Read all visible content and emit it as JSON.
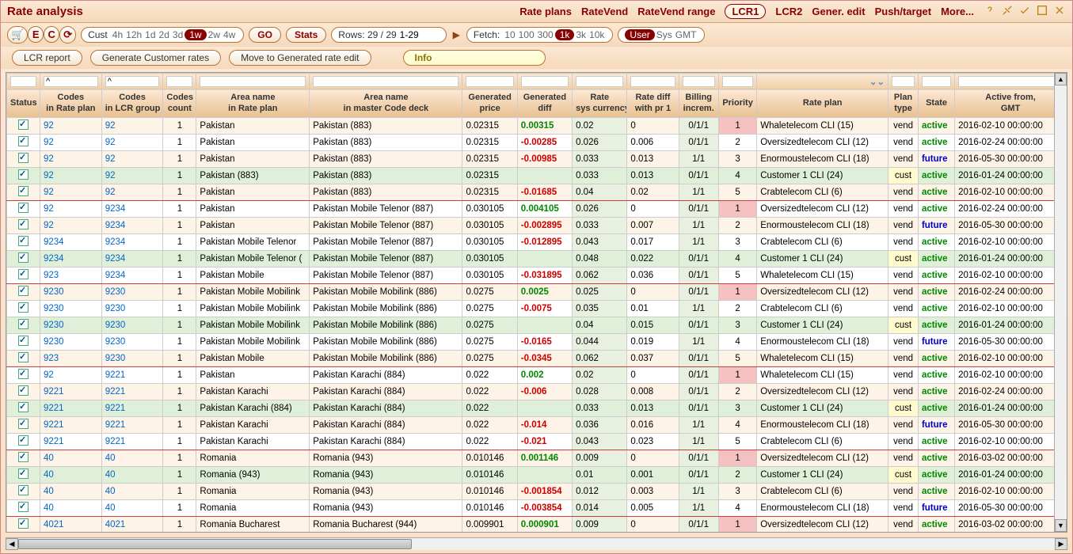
{
  "title": "Rate analysis",
  "nav": [
    "Rate plans",
    "RateVend",
    "RateVend range",
    "LCR1",
    "LCR2",
    "Gener. edit",
    "Push/target",
    "More..."
  ],
  "nav_active_index": 3,
  "toolbar": {
    "icon_buttons": [
      "🛒",
      "E",
      "C",
      "⟳"
    ],
    "cust_label": "Cust",
    "time_opts": [
      "4h",
      "12h",
      "1d",
      "2d",
      "3d",
      "1w",
      "2w",
      "4w"
    ],
    "time_active": 5,
    "go_label": "GO",
    "stats_label": "Stats",
    "rows_label": "Rows: 29 / 29",
    "rows_input": "1-29",
    "fetch_label": "Fetch:",
    "fetch_opts": [
      "10",
      "100",
      "300",
      "1k",
      "3k",
      "10k"
    ],
    "fetch_active": 3,
    "user_opts": [
      "User",
      "Sys",
      "GMT"
    ],
    "user_active": 0
  },
  "actions": {
    "lcr_report": "LCR report",
    "gen_customer": "Generate Customer rates",
    "move_to": "Move to Generated rate edit",
    "info": "Info"
  },
  "columns": [
    "Status",
    "Codes\nin Rate plan",
    "Codes\nin LCR group",
    "Codes\ncount",
    "Area name\nin Rate plan",
    "Area name\nin master Code deck",
    "Generated\nprice",
    "Generated\ndiff",
    "Rate\nsys currency",
    "Rate diff\nwith pr 1",
    "Billing\nincrem.",
    "Priority",
    "Rate plan",
    "Plan\ntype",
    "State",
    "Active from,\nGMT"
  ],
  "filters": [
    "",
    "^",
    "^",
    "",
    "",
    "",
    "",
    "",
    "",
    "",
    "",
    "",
    "",
    "",
    "",
    ""
  ],
  "rows": [
    {
      "crp": "92",
      "clcr": "92",
      "cnt": "1",
      "an_rp": "Pakistan",
      "an_mcd": "Pakistan (883)",
      "genp": "0.02315",
      "gendiff": "0.00315",
      "diff_sign": "pos",
      "rsys": "0.02",
      "rdiff": "0",
      "bill": "0/1/1",
      "prio": "1",
      "plan": "Whaletelecom CLI (15)",
      "ptype": "vend",
      "state": "active",
      "active": "2016-02-10 00:00:00",
      "green": false,
      "sep": false
    },
    {
      "crp": "92",
      "clcr": "92",
      "cnt": "1",
      "an_rp": "Pakistan",
      "an_mcd": "Pakistan (883)",
      "genp": "0.02315",
      "gendiff": "-0.00285",
      "diff_sign": "neg",
      "rsys": "0.026",
      "rdiff": "0.006",
      "bill": "0/1/1",
      "prio": "2",
      "plan": "Oversizedtelecom CLI (12)",
      "ptype": "vend",
      "state": "active",
      "active": "2016-02-24 00:00:00",
      "green": false,
      "sep": false
    },
    {
      "crp": "92",
      "clcr": "92",
      "cnt": "1",
      "an_rp": "Pakistan",
      "an_mcd": "Pakistan (883)",
      "genp": "0.02315",
      "gendiff": "-0.00985",
      "diff_sign": "neg",
      "rsys": "0.033",
      "rdiff": "0.013",
      "bill": "1/1",
      "prio": "3",
      "plan": "Enormoustelecom CLI (18)",
      "ptype": "vend",
      "state": "future",
      "active": "2016-05-30 00:00:00",
      "green": false,
      "sep": false
    },
    {
      "crp": "92",
      "clcr": "92",
      "cnt": "1",
      "an_rp": "Pakistan (883)",
      "an_mcd": "Pakistan (883)",
      "genp": "0.02315",
      "gendiff": "",
      "diff_sign": "",
      "rsys": "0.033",
      "rdiff": "0.013",
      "bill": "0/1/1",
      "prio": "4",
      "plan": "Customer 1 CLI (24)",
      "ptype": "cust",
      "state": "active",
      "active": "2016-01-24 00:00:00",
      "green": true,
      "sep": false
    },
    {
      "crp": "92",
      "clcr": "92",
      "cnt": "1",
      "an_rp": "Pakistan",
      "an_mcd": "Pakistan (883)",
      "genp": "0.02315",
      "gendiff": "-0.01685",
      "diff_sign": "neg",
      "rsys": "0.04",
      "rdiff": "0.02",
      "bill": "1/1",
      "prio": "5",
      "plan": "Crabtelecom CLI (6)",
      "ptype": "vend",
      "state": "active",
      "active": "2016-02-10 00:00:00",
      "green": false,
      "sep": true
    },
    {
      "crp": "92",
      "clcr": "9234",
      "cnt": "1",
      "an_rp": "Pakistan",
      "an_mcd": "Pakistan Mobile Telenor (887)",
      "genp": "0.030105",
      "gendiff": "0.004105",
      "diff_sign": "pos",
      "rsys": "0.026",
      "rdiff": "0",
      "bill": "0/1/1",
      "prio": "1",
      "plan": "Oversizedtelecom CLI (12)",
      "ptype": "vend",
      "state": "active",
      "active": "2016-02-24 00:00:00",
      "green": false,
      "sep": false
    },
    {
      "crp": "92",
      "clcr": "9234",
      "cnt": "1",
      "an_rp": "Pakistan",
      "an_mcd": "Pakistan Mobile Telenor (887)",
      "genp": "0.030105",
      "gendiff": "-0.002895",
      "diff_sign": "neg",
      "rsys": "0.033",
      "rdiff": "0.007",
      "bill": "1/1",
      "prio": "2",
      "plan": "Enormoustelecom CLI (18)",
      "ptype": "vend",
      "state": "future",
      "active": "2016-05-30 00:00:00",
      "green": false,
      "sep": false
    },
    {
      "crp": "9234",
      "clcr": "9234",
      "cnt": "1",
      "an_rp": "Pakistan Mobile Telenor",
      "an_mcd": "Pakistan Mobile Telenor (887)",
      "genp": "0.030105",
      "gendiff": "-0.012895",
      "diff_sign": "neg",
      "rsys": "0.043",
      "rdiff": "0.017",
      "bill": "1/1",
      "prio": "3",
      "plan": "Crabtelecom CLI (6)",
      "ptype": "vend",
      "state": "active",
      "active": "2016-02-10 00:00:00",
      "green": false,
      "sep": false
    },
    {
      "crp": "9234",
      "clcr": "9234",
      "cnt": "1",
      "an_rp": "Pakistan Mobile Telenor (",
      "an_mcd": "Pakistan Mobile Telenor (887)",
      "genp": "0.030105",
      "gendiff": "",
      "diff_sign": "",
      "rsys": "0.048",
      "rdiff": "0.022",
      "bill": "0/1/1",
      "prio": "4",
      "plan": "Customer 1 CLI (24)",
      "ptype": "cust",
      "state": "active",
      "active": "2016-01-24 00:00:00",
      "green": true,
      "sep": false
    },
    {
      "crp": "923",
      "clcr": "9234",
      "cnt": "1",
      "an_rp": "Pakistan Mobile",
      "an_mcd": "Pakistan Mobile Telenor (887)",
      "genp": "0.030105",
      "gendiff": "-0.031895",
      "diff_sign": "neg",
      "rsys": "0.062",
      "rdiff": "0.036",
      "bill": "0/1/1",
      "prio": "5",
      "plan": "Whaletelecom CLI (15)",
      "ptype": "vend",
      "state": "active",
      "active": "2016-02-10 00:00:00",
      "green": false,
      "sep": true
    },
    {
      "crp": "9230",
      "clcr": "9230",
      "cnt": "1",
      "an_rp": "Pakistan Mobile Mobilink",
      "an_mcd": "Pakistan Mobile Mobilink (886)",
      "genp": "0.0275",
      "gendiff": "0.0025",
      "diff_sign": "pos",
      "rsys": "0.025",
      "rdiff": "0",
      "bill": "0/1/1",
      "prio": "1",
      "plan": "Oversizedtelecom CLI (12)",
      "ptype": "vend",
      "state": "active",
      "active": "2016-02-24 00:00:00",
      "green": false,
      "sep": false
    },
    {
      "crp": "9230",
      "clcr": "9230",
      "cnt": "1",
      "an_rp": "Pakistan Mobile Mobilink",
      "an_mcd": "Pakistan Mobile Mobilink (886)",
      "genp": "0.0275",
      "gendiff": "-0.0075",
      "diff_sign": "neg",
      "rsys": "0.035",
      "rdiff": "0.01",
      "bill": "1/1",
      "prio": "2",
      "plan": "Crabtelecom CLI (6)",
      "ptype": "vend",
      "state": "active",
      "active": "2016-02-10 00:00:00",
      "green": false,
      "sep": false
    },
    {
      "crp": "9230",
      "clcr": "9230",
      "cnt": "1",
      "an_rp": "Pakistan Mobile Mobilink",
      "an_mcd": "Pakistan Mobile Mobilink (886)",
      "genp": "0.0275",
      "gendiff": "",
      "diff_sign": "",
      "rsys": "0.04",
      "rdiff": "0.015",
      "bill": "0/1/1",
      "prio": "3",
      "plan": "Customer 1 CLI (24)",
      "ptype": "cust",
      "state": "active",
      "active": "2016-01-24 00:00:00",
      "green": true,
      "sep": false
    },
    {
      "crp": "9230",
      "clcr": "9230",
      "cnt": "1",
      "an_rp": "Pakistan Mobile Mobilink",
      "an_mcd": "Pakistan Mobile Mobilink (886)",
      "genp": "0.0275",
      "gendiff": "-0.0165",
      "diff_sign": "neg",
      "rsys": "0.044",
      "rdiff": "0.019",
      "bill": "1/1",
      "prio": "4",
      "plan": "Enormoustelecom CLI (18)",
      "ptype": "vend",
      "state": "future",
      "active": "2016-05-30 00:00:00",
      "green": false,
      "sep": false
    },
    {
      "crp": "923",
      "clcr": "9230",
      "cnt": "1",
      "an_rp": "Pakistan Mobile",
      "an_mcd": "Pakistan Mobile Mobilink (886)",
      "genp": "0.0275",
      "gendiff": "-0.0345",
      "diff_sign": "neg",
      "rsys": "0.062",
      "rdiff": "0.037",
      "bill": "0/1/1",
      "prio": "5",
      "plan": "Whaletelecom CLI (15)",
      "ptype": "vend",
      "state": "active",
      "active": "2016-02-10 00:00:00",
      "green": false,
      "sep": true
    },
    {
      "crp": "92",
      "clcr": "9221",
      "cnt": "1",
      "an_rp": "Pakistan",
      "an_mcd": "Pakistan Karachi (884)",
      "genp": "0.022",
      "gendiff": "0.002",
      "diff_sign": "pos",
      "rsys": "0.02",
      "rdiff": "0",
      "bill": "0/1/1",
      "prio": "1",
      "plan": "Whaletelecom CLI (15)",
      "ptype": "vend",
      "state": "active",
      "active": "2016-02-10 00:00:00",
      "green": false,
      "sep": false
    },
    {
      "crp": "9221",
      "clcr": "9221",
      "cnt": "1",
      "an_rp": "Pakistan Karachi",
      "an_mcd": "Pakistan Karachi (884)",
      "genp": "0.022",
      "gendiff": "-0.006",
      "diff_sign": "neg",
      "rsys": "0.028",
      "rdiff": "0.008",
      "bill": "0/1/1",
      "prio": "2",
      "plan": "Oversizedtelecom CLI (12)",
      "ptype": "vend",
      "state": "active",
      "active": "2016-02-24 00:00:00",
      "green": false,
      "sep": false
    },
    {
      "crp": "9221",
      "clcr": "9221",
      "cnt": "1",
      "an_rp": "Pakistan Karachi (884)",
      "an_mcd": "Pakistan Karachi (884)",
      "genp": "0.022",
      "gendiff": "",
      "diff_sign": "",
      "rsys": "0.033",
      "rdiff": "0.013",
      "bill": "0/1/1",
      "prio": "3",
      "plan": "Customer 1 CLI (24)",
      "ptype": "cust",
      "state": "active",
      "active": "2016-01-24 00:00:00",
      "green": true,
      "sep": false
    },
    {
      "crp": "9221",
      "clcr": "9221",
      "cnt": "1",
      "an_rp": "Pakistan Karachi",
      "an_mcd": "Pakistan Karachi (884)",
      "genp": "0.022",
      "gendiff": "-0.014",
      "diff_sign": "neg",
      "rsys": "0.036",
      "rdiff": "0.016",
      "bill": "1/1",
      "prio": "4",
      "plan": "Enormoustelecom CLI (18)",
      "ptype": "vend",
      "state": "future",
      "active": "2016-05-30 00:00:00",
      "green": false,
      "sep": false
    },
    {
      "crp": "9221",
      "clcr": "9221",
      "cnt": "1",
      "an_rp": "Pakistan Karachi",
      "an_mcd": "Pakistan Karachi (884)",
      "genp": "0.022",
      "gendiff": "-0.021",
      "diff_sign": "neg",
      "rsys": "0.043",
      "rdiff": "0.023",
      "bill": "1/1",
      "prio": "5",
      "plan": "Crabtelecom CLI (6)",
      "ptype": "vend",
      "state": "active",
      "active": "2016-02-10 00:00:00",
      "green": false,
      "sep": true
    },
    {
      "crp": "40",
      "clcr": "40",
      "cnt": "1",
      "an_rp": "Romania",
      "an_mcd": "Romania (943)",
      "genp": "0.010146",
      "gendiff": "0.001146",
      "diff_sign": "pos",
      "rsys": "0.009",
      "rdiff": "0",
      "bill": "0/1/1",
      "prio": "1",
      "plan": "Oversizedtelecom CLI (12)",
      "ptype": "vend",
      "state": "active",
      "active": "2016-03-02 00:00:00",
      "green": false,
      "sep": false
    },
    {
      "crp": "40",
      "clcr": "40",
      "cnt": "1",
      "an_rp": "Romania (943)",
      "an_mcd": "Romania (943)",
      "genp": "0.010146",
      "gendiff": "",
      "diff_sign": "",
      "rsys": "0.01",
      "rdiff": "0.001",
      "bill": "0/1/1",
      "prio": "2",
      "plan": "Customer 1 CLI (24)",
      "ptype": "cust",
      "state": "active",
      "active": "2016-01-24 00:00:00",
      "green": true,
      "sep": false
    },
    {
      "crp": "40",
      "clcr": "40",
      "cnt": "1",
      "an_rp": "Romania",
      "an_mcd": "Romania (943)",
      "genp": "0.010146",
      "gendiff": "-0.001854",
      "diff_sign": "neg",
      "rsys": "0.012",
      "rdiff": "0.003",
      "bill": "1/1",
      "prio": "3",
      "plan": "Crabtelecom CLI (6)",
      "ptype": "vend",
      "state": "active",
      "active": "2016-02-10 00:00:00",
      "green": false,
      "sep": false
    },
    {
      "crp": "40",
      "clcr": "40",
      "cnt": "1",
      "an_rp": "Romania",
      "an_mcd": "Romania (943)",
      "genp": "0.010146",
      "gendiff": "-0.003854",
      "diff_sign": "neg",
      "rsys": "0.014",
      "rdiff": "0.005",
      "bill": "1/1",
      "prio": "4",
      "plan": "Enormoustelecom CLI (18)",
      "ptype": "vend",
      "state": "future",
      "active": "2016-05-30 00:00:00",
      "green": false,
      "sep": true
    },
    {
      "crp": "4021",
      "clcr": "4021",
      "cnt": "1",
      "an_rp": "Romania Bucharest",
      "an_mcd": "Romania Bucharest (944)",
      "genp": "0.009901",
      "gendiff": "0.000901",
      "diff_sign": "pos",
      "rsys": "0.009",
      "rdiff": "0",
      "bill": "0/1/1",
      "prio": "1",
      "plan": "Oversizedtelecom CLI (12)",
      "ptype": "vend",
      "state": "active",
      "active": "2016-03-02 00:00:00",
      "green": false,
      "sep": false
    },
    {
      "crp": "4021",
      "clcr": "4021",
      "cnt": "1",
      "an_rp": "Romania Bucharest",
      "an_mcd": "Romania Bucharest (944)",
      "genp": "0.009901",
      "gendiff": "-0.000099",
      "diff_sign": "neg",
      "rsys": "0.01",
      "rdiff": "0.001",
      "bill": "1/1",
      "prio": "2",
      "plan": "Enormoustelecom CLI (18)",
      "ptype": "vend",
      "state": "future",
      "active": "2016-05-30 00:00:00",
      "green": false,
      "sep": false
    }
  ]
}
